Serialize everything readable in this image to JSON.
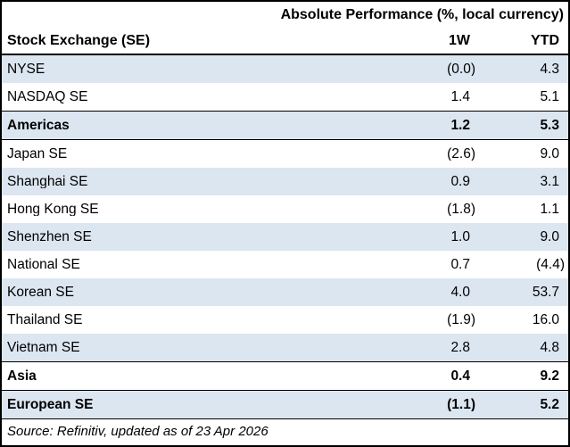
{
  "title": "Absolute Performance (%, local currency)",
  "header": {
    "label_col": "Stock Exchange (SE)",
    "col_1w": "1W",
    "col_ytd": "YTD"
  },
  "rows": [
    {
      "name": "NYSE",
      "w1": "(0.0)",
      "ytd": "4.3"
    },
    {
      "name": "NASDAQ SE",
      "w1": "1.4",
      "ytd": "5.1"
    },
    {
      "name": "Americas",
      "w1": "1.2",
      "ytd": "5.3"
    },
    {
      "name": "Japan SE",
      "w1": "(2.6)",
      "ytd": "9.0"
    },
    {
      "name": "Shanghai SE",
      "w1": "0.9",
      "ytd": "3.1"
    },
    {
      "name": "Hong Kong SE",
      "w1": "(1.8)",
      "ytd": "1.1"
    },
    {
      "name": "Shenzhen SE",
      "w1": "1.0",
      "ytd": "9.0"
    },
    {
      "name": "National SE",
      "w1": "0.7",
      "ytd": "(4.4)"
    },
    {
      "name": "Korean SE",
      "w1": "4.0",
      "ytd": "53.7"
    },
    {
      "name": "Thailand SE",
      "w1": "(1.9)",
      "ytd": "16.0"
    },
    {
      "name": "Vietnam SE",
      "w1": "2.8",
      "ytd": "4.8"
    },
    {
      "name": "Asia",
      "w1": "0.4",
      "ytd": "9.2"
    },
    {
      "name": "European SE",
      "w1": "(1.1)",
      "ytd": "5.2"
    }
  ],
  "source": "Source: Refinitiv, updated as of 23 Apr 2026",
  "colors": {
    "row_alt_background": "#dce6f1",
    "border": "#000000",
    "text": "#000000"
  },
  "chart_data": {
    "type": "table",
    "title": "Absolute Performance (%, local currency)",
    "columns": [
      "Stock Exchange (SE)",
      "1W",
      "YTD"
    ],
    "rows": [
      [
        "NYSE",
        -0.0,
        4.3
      ],
      [
        "NASDAQ SE",
        1.4,
        5.1
      ],
      [
        "Americas",
        1.2,
        5.3
      ],
      [
        "Japan SE",
        -2.6,
        9.0
      ],
      [
        "Shanghai SE",
        0.9,
        3.1
      ],
      [
        "Hong Kong SE",
        -1.8,
        1.1
      ],
      [
        "Shenzhen SE",
        1.0,
        9.0
      ],
      [
        "National SE",
        0.7,
        -4.4
      ],
      [
        "Korean SE",
        4.0,
        53.7
      ],
      [
        "Thailand SE",
        -1.9,
        16.0
      ],
      [
        "Vietnam SE",
        2.8,
        4.8
      ],
      [
        "Asia",
        0.4,
        9.2
      ],
      [
        "European SE",
        -1.1,
        5.2
      ]
    ],
    "subtotal_rows": [
      "Americas",
      "Asia",
      "European SE"
    ],
    "negative_format": "parentheses",
    "source": "Source: Refinitiv, updated as of 23 Apr 2026"
  }
}
